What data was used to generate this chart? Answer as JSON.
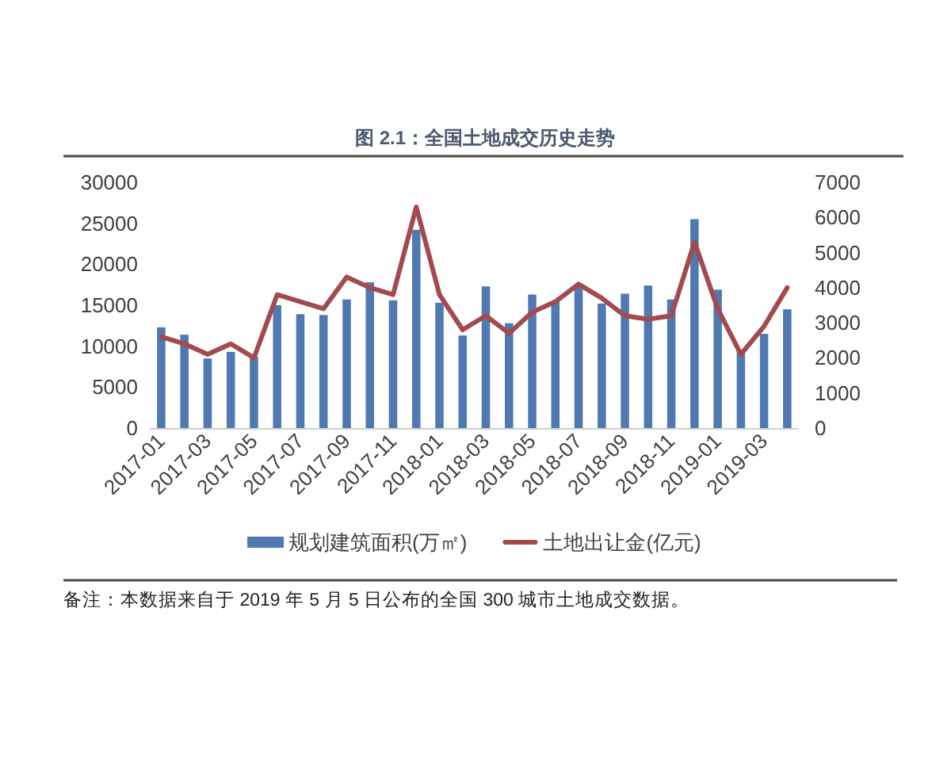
{
  "chart_data": {
    "type": "bar",
    "title": "图 2.1：全国土地成交历史走势",
    "categories": [
      "2017-01",
      null,
      "2017-03",
      null,
      "2017-05",
      null,
      "2017-07",
      null,
      "2017-09",
      null,
      "2017-11",
      null,
      "2018-01",
      null,
      "2018-03",
      null,
      "2018-05",
      null,
      "2018-07",
      null,
      "2018-09",
      null,
      "2018-11",
      null,
      "2019-01",
      null,
      "2019-03",
      null
    ],
    "series": [
      {
        "name": "规划建筑面积(万㎡)",
        "color": "#4f79b0",
        "values": [
          12300,
          11400,
          8500,
          9300,
          8700,
          15000,
          13900,
          13800,
          15700,
          17800,
          15600,
          24200,
          15300,
          11300,
          17300,
          12800,
          16300,
          15500,
          17500,
          15200,
          16400,
          17400,
          15700,
          25500,
          16900,
          9500,
          11500,
          14500
        ]
      },
      {
        "name": "土地出让金(亿元)",
        "type": "line",
        "axis": "y2",
        "color": "#a34a4e",
        "values": [
          2600,
          2400,
          2100,
          2400,
          2000,
          3800,
          3600,
          3400,
          4300,
          4000,
          3800,
          6300,
          3800,
          2800,
          3200,
          2700,
          3300,
          3600,
          4100,
          3700,
          3200,
          3100,
          3200,
          5300,
          3400,
          2100,
          2900,
          4000
        ]
      }
    ],
    "ylim": [
      0,
      30000
    ],
    "yticks": [
      0,
      5000,
      10000,
      15000,
      20000,
      25000,
      30000
    ],
    "y2lim": [
      0,
      7000
    ],
    "y2ticks": [
      0,
      1000,
      2000,
      3000,
      4000,
      5000,
      6000,
      7000
    ],
    "legend": "bottom",
    "annotations": [
      "备注：本数据来自于 2019 年 5 月 5 日公布的全国 300 城市土地成交数据。"
    ]
  }
}
